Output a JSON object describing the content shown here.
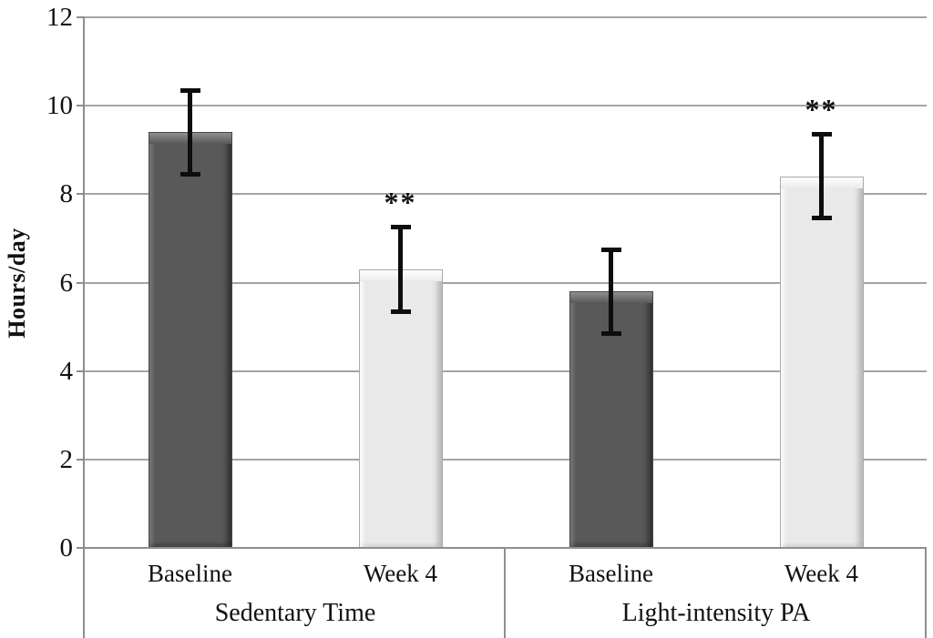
{
  "chart_data": {
    "type": "bar",
    "title": "",
    "xlabel": "",
    "ylabel": "Hours/day",
    "ylim": [
      0,
      12
    ],
    "yticks": [
      0,
      2,
      4,
      6,
      8,
      10,
      12
    ],
    "grid": "horizontal",
    "legend_position": "none",
    "groups": [
      {
        "label": "Sedentary Time",
        "bars": [
          {
            "label": "Baseline",
            "value": 9.4,
            "error": 1.0,
            "style": "dark",
            "annotation": ""
          },
          {
            "label": "Week 4",
            "value": 6.3,
            "error": 1.0,
            "style": "light",
            "annotation": "**"
          }
        ]
      },
      {
        "label": "Light-intensity PA",
        "bars": [
          {
            "label": "Baseline",
            "value": 5.8,
            "error": 1.0,
            "style": "dark",
            "annotation": ""
          },
          {
            "label": "Week 4",
            "value": 8.4,
            "error": 1.0,
            "style": "light",
            "annotation": "**"
          }
        ]
      }
    ],
    "colors": {
      "dark_bar": "#595959",
      "light_bar": "#e9e9e9",
      "error_bar": "#0d0d0d",
      "gridline": "#a4a4a4",
      "axis": "#8e8e8e",
      "text": "#111111"
    }
  }
}
